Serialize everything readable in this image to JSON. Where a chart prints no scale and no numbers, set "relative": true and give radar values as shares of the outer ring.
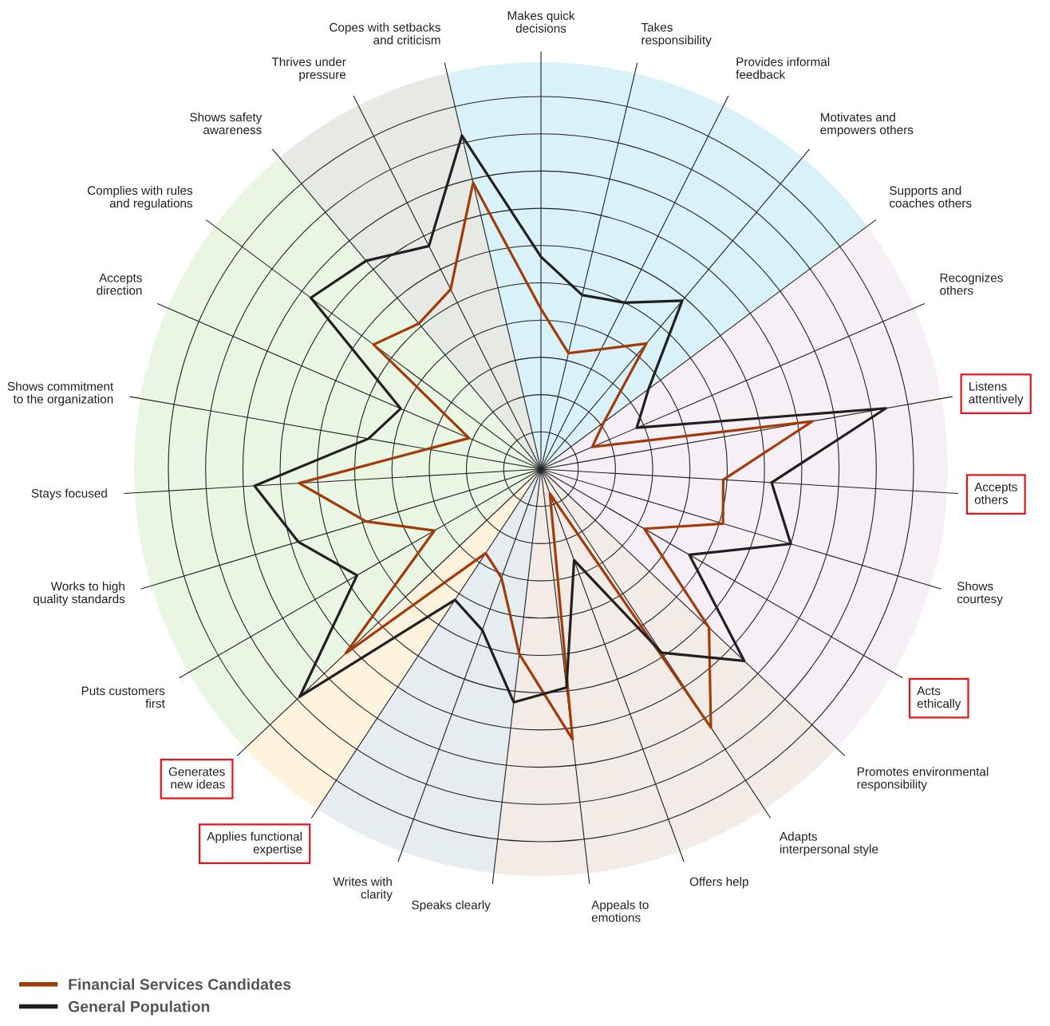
{
  "chart_data": {
    "type": "radar",
    "relative": true,
    "grid": true,
    "legend": "bottom left",
    "marker": "none",
    "line_style": "solid",
    "categories": [
      "Makes quick\ndecisions",
      "Takes\nresponsibility",
      "Provides informal\nfeedback",
      "Motivates and\nempowers others",
      "Supports and\ncoaches others",
      "Recognizes\nothers",
      "Listens\nattentively",
      "Accepts\nothers",
      "Shows\ncourtesy",
      "Acts\nethically",
      "Promotes environmental\nresponsibility",
      "Adapts\ninterpersonal style",
      "Offers help",
      "Appeals to\nemotions",
      "Speaks clearly",
      "Writes with\nclarity",
      "Applies functional\nexpertise",
      "Generates\nnew ideas",
      "Puts customers\nfirst",
      "Works to high\nquality standards",
      "Stays focused",
      "Shows commitment\nto the organization",
      "Accepts\ndirection",
      "Complies with rules\nand regulations",
      "Shows safety\nawareness",
      "Thrives under\npressure",
      "Copes with setbacks\nand criticism"
    ],
    "series": [
      {
        "name": "Financial Services Candidates",
        "color": "#a33a0a",
        "values": [
          0.43,
          0.32,
          0.36,
          0.44,
          0.21,
          0.15,
          0.74,
          0.49,
          0.51,
          0.32,
          0.62,
          0.83,
          0.07,
          0.73,
          0.5,
          0.31,
          0.27,
          0.72,
          0.33,
          0.49,
          0.65,
          0.31,
          0.21,
          0.56,
          0.51,
          0.54,
          0.79
        ]
      },
      {
        "name": "General Population",
        "color": "#231f20",
        "values": [
          0.57,
          0.48,
          0.5,
          0.59,
          0.36,
          0.28,
          0.94,
          0.62,
          0.7,
          0.46,
          0.75,
          0.59,
          0.26,
          0.59,
          0.63,
          0.46,
          0.42,
          0.89,
          0.57,
          0.68,
          0.77,
          0.47,
          0.41,
          0.77,
          0.73,
          0.67,
          0.92
        ]
      }
    ]
  }
}
